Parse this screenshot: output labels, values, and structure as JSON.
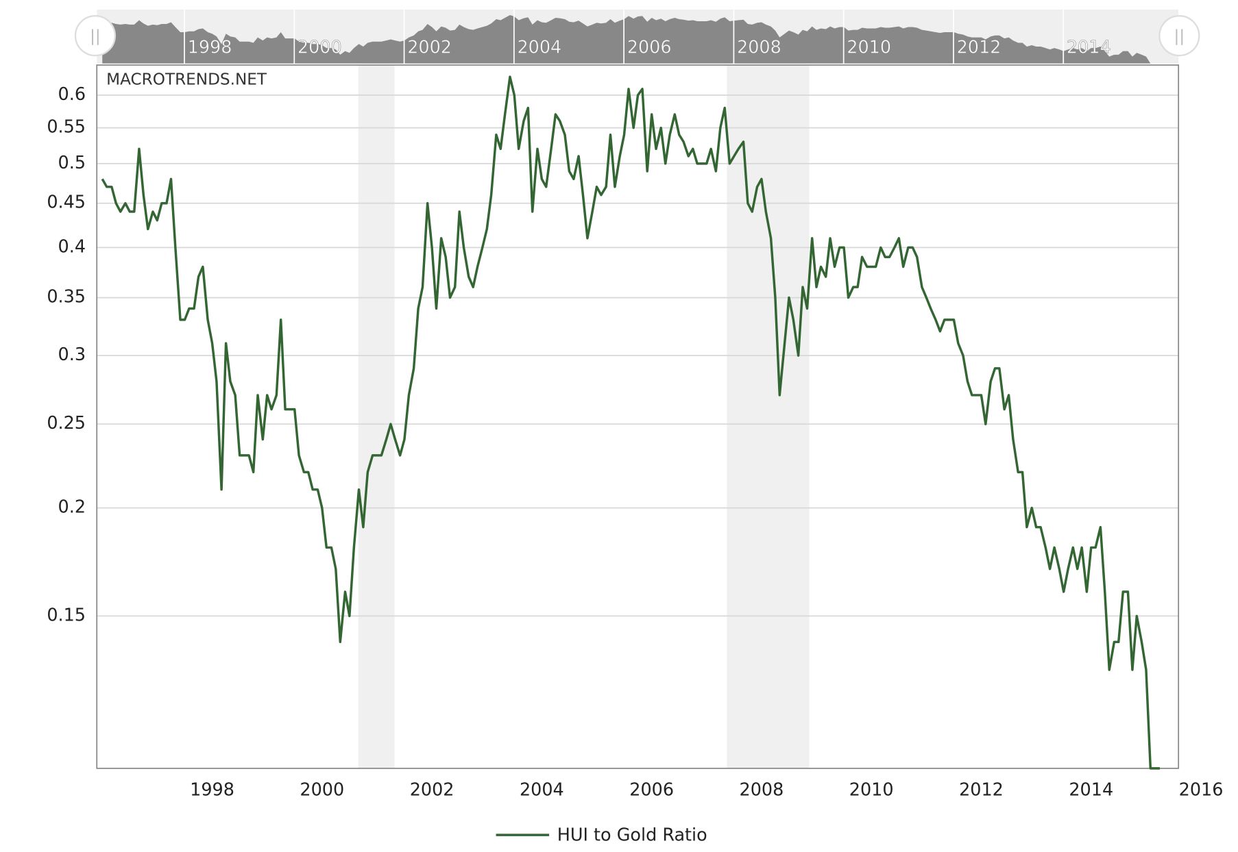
{
  "chart_data": {
    "type": "line",
    "watermark": "MACROTRENDS.NET",
    "log_scale": true,
    "grid": true,
    "x": [
      1996,
      1996.08,
      1996.17,
      1996.25,
      1996.33,
      1996.42,
      1996.5,
      1996.58,
      1996.67,
      1996.75,
      1996.83,
      1996.92,
      1997,
      1997.08,
      1997.17,
      1997.25,
      1997.33,
      1997.42,
      1997.5,
      1997.58,
      1997.67,
      1997.75,
      1997.83,
      1997.92,
      1998,
      1998.08,
      1998.17,
      1998.25,
      1998.33,
      1998.42,
      1998.5,
      1998.58,
      1998.67,
      1998.75,
      1998.83,
      1998.92,
      1999,
      1999.08,
      1999.17,
      1999.25,
      1999.33,
      1999.42,
      1999.5,
      1999.58,
      1999.67,
      1999.75,
      1999.83,
      1999.92,
      2000,
      2000.08,
      2000.17,
      2000.25,
      2000.33,
      2000.42,
      2000.5,
      2000.58,
      2000.67,
      2000.75,
      2000.83,
      2000.92,
      2001,
      2001.08,
      2001.17,
      2001.25,
      2001.33,
      2001.42,
      2001.5,
      2001.58,
      2001.67,
      2001.75,
      2001.83,
      2001.92,
      2002,
      2002.08,
      2002.17,
      2002.25,
      2002.33,
      2002.42,
      2002.5,
      2002.58,
      2002.67,
      2002.75,
      2002.83,
      2002.92,
      2003,
      2003.08,
      2003.17,
      2003.25,
      2003.33,
      2003.42,
      2003.5,
      2003.58,
      2003.67,
      2003.75,
      2003.83,
      2003.92,
      2004,
      2004.08,
      2004.17,
      2004.25,
      2004.33,
      2004.42,
      2004.5,
      2004.58,
      2004.67,
      2004.75,
      2004.83,
      2004.92,
      2005,
      2005.08,
      2005.17,
      2005.25,
      2005.33,
      2005.42,
      2005.5,
      2005.58,
      2005.67,
      2005.75,
      2005.83,
      2005.92,
      2006,
      2006.08,
      2006.17,
      2006.25,
      2006.33,
      2006.42,
      2006.5,
      2006.58,
      2006.67,
      2006.75,
      2006.83,
      2006.92,
      2007,
      2007.08,
      2007.17,
      2007.25,
      2007.33,
      2007.42,
      2007.5,
      2007.58,
      2007.67,
      2007.75,
      2007.83,
      2007.92,
      2008,
      2008.08,
      2008.17,
      2008.25,
      2008.33,
      2008.42,
      2008.5,
      2008.58,
      2008.67,
      2008.75,
      2008.83,
      2008.92,
      2009,
      2009.08,
      2009.17,
      2009.25,
      2009.33,
      2009.42,
      2009.5,
      2009.58,
      2009.67,
      2009.75,
      2009.83,
      2009.92,
      2010,
      2010.08,
      2010.17,
      2010.25,
      2010.33,
      2010.42,
      2010.5,
      2010.58,
      2010.67,
      2010.75,
      2010.83,
      2010.92,
      2011,
      2011.08,
      2011.17,
      2011.25,
      2011.33,
      2011.42,
      2011.5,
      2011.58,
      2011.67,
      2011.75,
      2011.83,
      2011.92,
      2012,
      2012.08,
      2012.17,
      2012.25,
      2012.33,
      2012.42,
      2012.5,
      2012.58,
      2012.67,
      2012.75,
      2012.83,
      2012.92,
      2013,
      2013.08,
      2013.17,
      2013.25,
      2013.33,
      2013.42,
      2013.5,
      2013.58,
      2013.67,
      2013.75,
      2013.83,
      2013.92,
      2014,
      2014.08,
      2014.17,
      2014.25,
      2014.33,
      2014.42,
      2014.5,
      2014.58,
      2014.67,
      2014.75,
      2014.83,
      2014.92,
      2015,
      2015.08,
      2015.17,
      2015.25
    ],
    "series": [
      {
        "name": "HUI to Gold Ratio",
        "color": "#336633",
        "values": [
          0.48,
          0.47,
          0.47,
          0.45,
          0.44,
          0.45,
          0.44,
          0.44,
          0.52,
          0.46,
          0.42,
          0.44,
          0.43,
          0.45,
          0.45,
          0.48,
          0.4,
          0.33,
          0.33,
          0.34,
          0.34,
          0.37,
          0.38,
          0.33,
          0.31,
          0.28,
          0.21,
          0.31,
          0.28,
          0.27,
          0.23,
          0.23,
          0.23,
          0.22,
          0.27,
          0.24,
          0.27,
          0.26,
          0.27,
          0.33,
          0.26,
          0.26,
          0.26,
          0.23,
          0.22,
          0.22,
          0.21,
          0.21,
          0.2,
          0.18,
          0.18,
          0.17,
          0.14,
          0.16,
          0.15,
          0.18,
          0.21,
          0.19,
          0.22,
          0.23,
          0.23,
          0.23,
          0.24,
          0.25,
          0.24,
          0.23,
          0.24,
          0.27,
          0.29,
          0.34,
          0.36,
          0.45,
          0.4,
          0.34,
          0.41,
          0.39,
          0.35,
          0.36,
          0.44,
          0.4,
          0.37,
          0.36,
          0.38,
          0.4,
          0.42,
          0.46,
          0.54,
          0.52,
          0.57,
          0.63,
          0.6,
          0.52,
          0.56,
          0.58,
          0.44,
          0.52,
          0.48,
          0.47,
          0.52,
          0.57,
          0.56,
          0.54,
          0.49,
          0.48,
          0.51,
          0.46,
          0.41,
          0.44,
          0.47,
          0.46,
          0.47,
          0.54,
          0.47,
          0.51,
          0.54,
          0.61,
          0.55,
          0.6,
          0.61,
          0.49,
          0.57,
          0.52,
          0.55,
          0.5,
          0.54,
          0.57,
          0.54,
          0.53,
          0.51,
          0.52,
          0.5,
          0.5,
          0.5,
          0.52,
          0.49,
          0.55,
          0.58,
          0.5,
          0.51,
          0.52,
          0.53,
          0.45,
          0.44,
          0.47,
          0.48,
          0.44,
          0.41,
          0.35,
          0.27,
          0.31,
          0.35,
          0.33,
          0.3,
          0.36,
          0.34,
          0.41,
          0.36,
          0.38,
          0.37,
          0.41,
          0.38,
          0.4,
          0.4,
          0.35,
          0.36,
          0.36,
          0.39,
          0.38,
          0.38,
          0.38,
          0.4,
          0.39,
          0.39,
          0.4,
          0.41,
          0.38,
          0.4,
          0.4,
          0.39,
          0.36,
          0.35,
          0.34,
          0.33,
          0.32,
          0.33,
          0.33,
          0.33,
          0.31,
          0.3,
          0.28,
          0.27,
          0.27,
          0.27,
          0.25,
          0.28,
          0.29,
          0.29,
          0.26,
          0.27,
          0.24,
          0.22,
          0.22,
          0.19,
          0.2,
          0.19,
          0.19,
          0.18,
          0.17,
          0.18,
          0.17,
          0.16,
          0.17,
          0.18,
          0.17,
          0.18,
          0.16,
          0.18,
          0.18,
          0.19,
          0.16,
          0.13,
          0.14,
          0.14,
          0.16,
          0.16,
          0.13,
          0.15,
          0.14,
          0.13,
          0.1,
          0.1,
          0.1
        ]
      }
    ],
    "bands": [
      [
        2000.66,
        2001.32
      ],
      [
        2007.37,
        2008.87
      ]
    ],
    "xlim": [
      1995.9,
      2015.59
    ],
    "xticks": [
      1998,
      2000,
      2002,
      2004,
      2006,
      2008,
      2010,
      2012,
      2014,
      2016
    ],
    "ylim": [
      0.1,
      0.65
    ],
    "yticks": [
      0.15,
      0.2,
      0.25,
      0.3,
      0.35,
      0.4,
      0.45,
      0.5,
      0.55,
      0.6
    ]
  }
}
